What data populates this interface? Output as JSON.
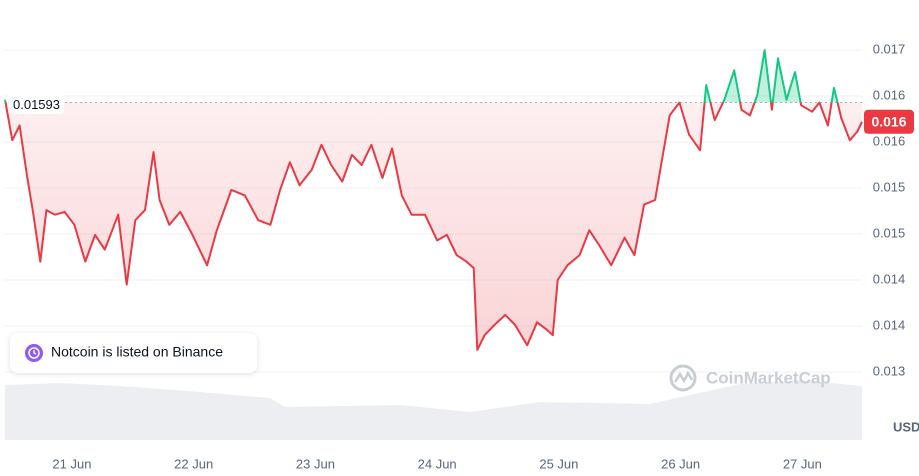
{
  "chart_data": {
    "type": "line",
    "x": [
      -0.55,
      -0.49,
      -0.43,
      -0.37,
      -0.32,
      -0.26,
      -0.21,
      -0.14,
      -0.06,
      0.02,
      0.11,
      0.19,
      0.27,
      0.38,
      0.45,
      0.52,
      0.6,
      0.67,
      0.72,
      0.8,
      0.89,
      0.99,
      1.11,
      1.19,
      1.31,
      1.42,
      1.53,
      1.63,
      1.71,
      1.79,
      1.87,
      1.97,
      2.05,
      2.13,
      2.22,
      2.3,
      2.38,
      2.46,
      2.55,
      2.63,
      2.71,
      2.79,
      2.9,
      3.0,
      3.08,
      3.16,
      3.24,
      3.3,
      3.33,
      3.39,
      3.47,
      3.56,
      3.64,
      3.74,
      3.82,
      3.9,
      3.95,
      3.99,
      4.07,
      4.17,
      4.25,
      4.33,
      4.43,
      4.54,
      4.62,
      4.7,
      4.79,
      4.84,
      4.91,
      4.99,
      5.07,
      5.16,
      5.21,
      5.28,
      5.36,
      5.44,
      5.5,
      5.57,
      5.63,
      5.69,
      5.75,
      5.8,
      5.87,
      5.94,
      5.99,
      6.08,
      6.14,
      6.21,
      6.26,
      6.32,
      6.39,
      6.45,
      6.49
    ],
    "series": [
      {
        "values": [
          0.01596,
          0.01552,
          0.01568,
          0.01514,
          0.01474,
          0.0142,
          0.01476,
          0.01471,
          0.01474,
          0.0146,
          0.0142,
          0.01449,
          0.01433,
          0.01471,
          0.01395,
          0.01465,
          0.01476,
          0.01539,
          0.01487,
          0.0146,
          0.01474,
          0.01449,
          0.01416,
          0.01454,
          0.01498,
          0.01492,
          0.01465,
          0.0146,
          0.01498,
          0.01528,
          0.01503,
          0.0152,
          0.01547,
          0.01525,
          0.01507,
          0.01536,
          0.01525,
          0.01547,
          0.01511,
          0.01543,
          0.01492,
          0.01471,
          0.01471,
          0.01443,
          0.01449,
          0.01427,
          0.0142,
          0.01413,
          0.01324,
          0.0134,
          0.01351,
          0.01362,
          0.01351,
          0.01329,
          0.01354,
          0.01346,
          0.0134,
          0.014,
          0.01416,
          0.01427,
          0.01454,
          0.01438,
          0.01416,
          0.01446,
          0.01427,
          0.01482,
          0.01487,
          0.01525,
          0.01579,
          0.01593,
          0.01558,
          0.01541,
          0.01612,
          0.01574,
          0.01596,
          0.01628,
          0.01585,
          0.01579,
          0.01601,
          0.0165,
          0.01585,
          0.01641,
          0.01596,
          0.01626,
          0.0159,
          0.01583,
          0.01593,
          0.01568,
          0.01609,
          0.01576,
          0.01552,
          0.01561,
          0.01572
        ],
        "color_up": "#16c784",
        "color_down": "#ea3943"
      }
    ],
    "baseline": 0.01593,
    "current_price": {
      "value": 0.01572,
      "label": "0.016"
    },
    "xlim": [
      -0.55,
      6.49
    ],
    "ylim": [
      0.01226,
      0.01699
    ],
    "xticks": [
      {
        "value": 0,
        "label": "21 Jun"
      },
      {
        "value": 1,
        "label": "22 Jun"
      },
      {
        "value": 2,
        "label": "23 Jun"
      },
      {
        "value": 3,
        "label": "24 Jun"
      },
      {
        "value": 4,
        "label": "25 Jun"
      },
      {
        "value": 5,
        "label": "26 Jun"
      },
      {
        "value": 6,
        "label": "27 Jun"
      }
    ],
    "yticks": [
      {
        "value": 0.0165,
        "label": "0.017"
      },
      {
        "value": 0.016,
        "label": "0.016"
      },
      {
        "value": 0.0155,
        "label": "0.016"
      },
      {
        "value": 0.015,
        "label": "0.015"
      },
      {
        "value": 0.0145,
        "label": "0.015"
      },
      {
        "value": 0.014,
        "label": "0.014"
      },
      {
        "value": 0.0135,
        "label": "0.014"
      },
      {
        "value": 0.013,
        "label": "0.013"
      }
    ],
    "grid": true,
    "currency": "USD",
    "annotation": "Notcoin is listed on Binance",
    "watermark": "CoinMarketCap"
  }
}
